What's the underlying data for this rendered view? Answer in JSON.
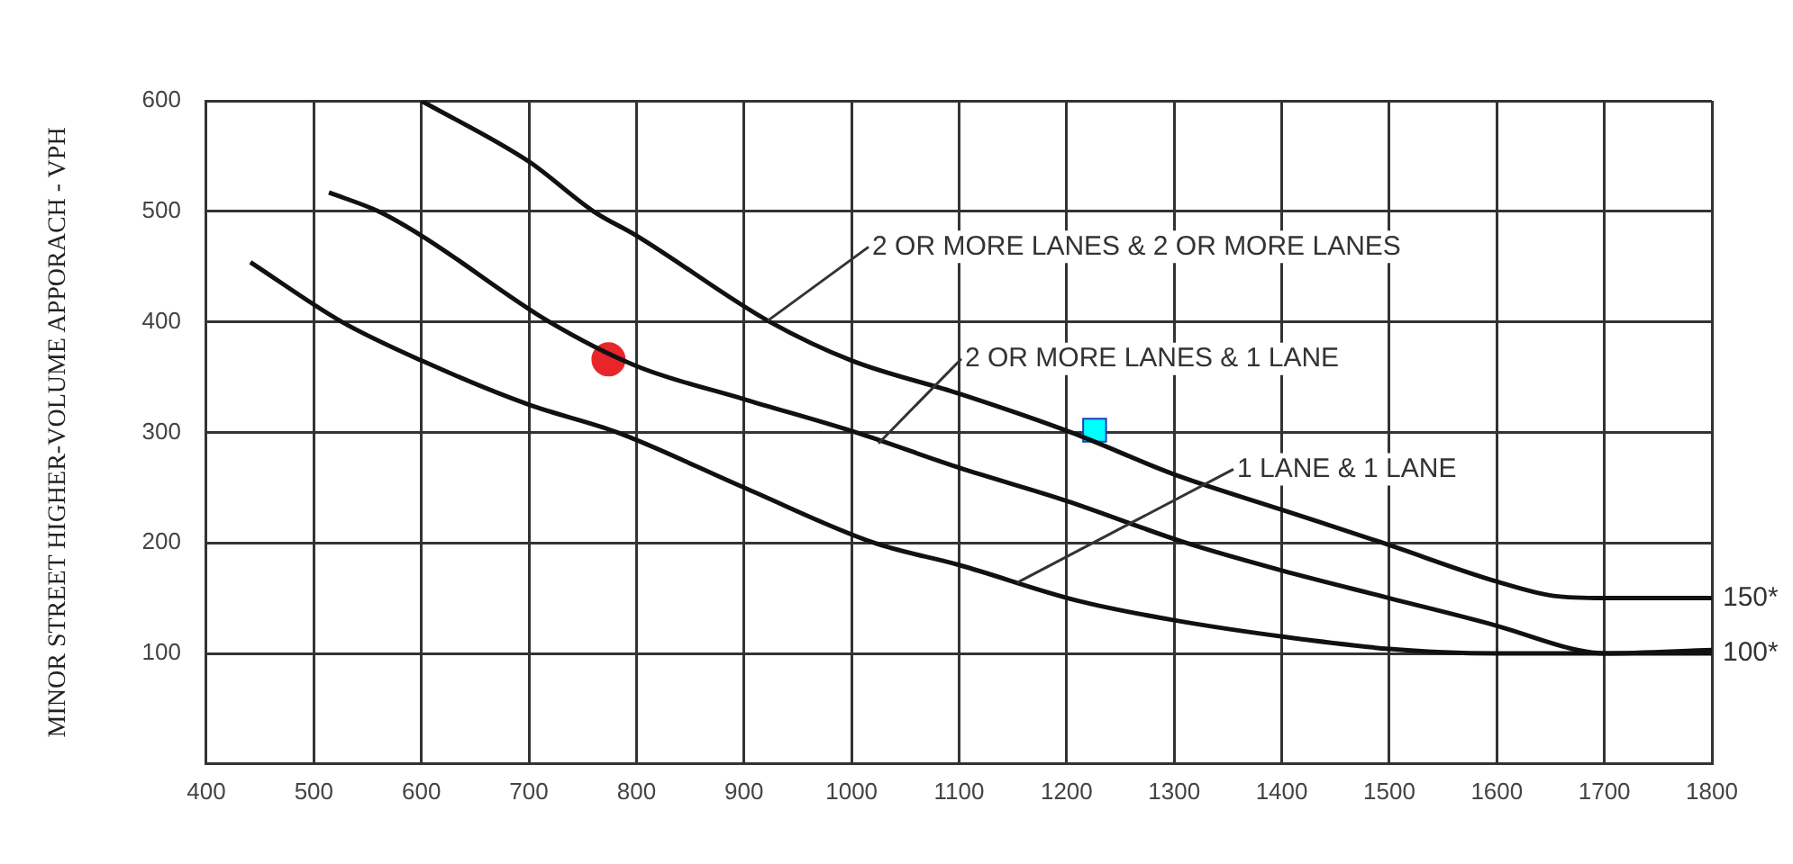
{
  "chart_data": {
    "type": "line",
    "ylabel": "MINOR STREET HIGHER-VOLUME APPORACH - VPH",
    "xlim": [
      400,
      1800
    ],
    "ylim": [
      0,
      600
    ],
    "xticks": [
      400,
      500,
      600,
      700,
      800,
      900,
      1000,
      1100,
      1200,
      1300,
      1400,
      1500,
      1600,
      1700,
      1800
    ],
    "yticks": [
      100,
      200,
      300,
      400,
      500,
      600
    ],
    "grid": true,
    "annotations": [
      {
        "text": "2 OR MORE LANES & 2 OR MORE LANES",
        "x": 922,
        "y": 401
      },
      {
        "text": "2 OR MORE LANES & 1 LANE",
        "x": 1025,
        "y": 290
      },
      {
        "text": "1 LANE & 1 LANE",
        "x": 1154,
        "y": 164
      },
      {
        "text": "150*",
        "x": 1800,
        "y": 150
      },
      {
        "text": "100*",
        "x": 1800,
        "y": 100
      }
    ],
    "series": [
      {
        "color": "#111111",
        "marker": "none",
        "x": [
          600,
          700,
          760,
          800,
          924,
          1000,
          1100,
          1204,
          1300,
          1400,
          1494,
          1600,
          1653,
          1700,
          1800
        ],
        "values": [
          600,
          545,
          500,
          478,
          400,
          365,
          335,
          300,
          262,
          230,
          200,
          165,
          152,
          150,
          150
        ]
      },
      {
        "color": "#111111",
        "marker": "none",
        "x": [
          514,
          560,
          600,
          719,
          800,
          900,
          1004,
          1100,
          1200,
          1311,
          1400,
          1500,
          1600,
          1675,
          1700,
          1800
        ],
        "values": [
          517,
          500,
          478,
          400,
          360,
          330,
          300,
          268,
          238,
          200,
          175,
          150,
          125,
          103,
          100,
          100
        ]
      },
      {
        "color": "#111111",
        "marker": "none",
        "x": [
          441,
          526,
          600,
          700,
          782,
          900,
          1021,
          1100,
          1209,
          1300,
          1402,
          1500,
          1550,
          1600,
          1700,
          1800
        ],
        "values": [
          454,
          400,
          365,
          325,
          300,
          250,
          200,
          180,
          148,
          130,
          115,
          104,
          101,
          100,
          100,
          103
        ]
      },
      {
        "type": "scatter",
        "color": "#e8262a",
        "marker": "circle",
        "x": [
          774
        ],
        "values": [
          366
        ]
      },
      {
        "type": "scatter",
        "color": "#00ffff",
        "marker": "square",
        "x": [
          1226
        ],
        "values": [
          302
        ]
      }
    ]
  }
}
